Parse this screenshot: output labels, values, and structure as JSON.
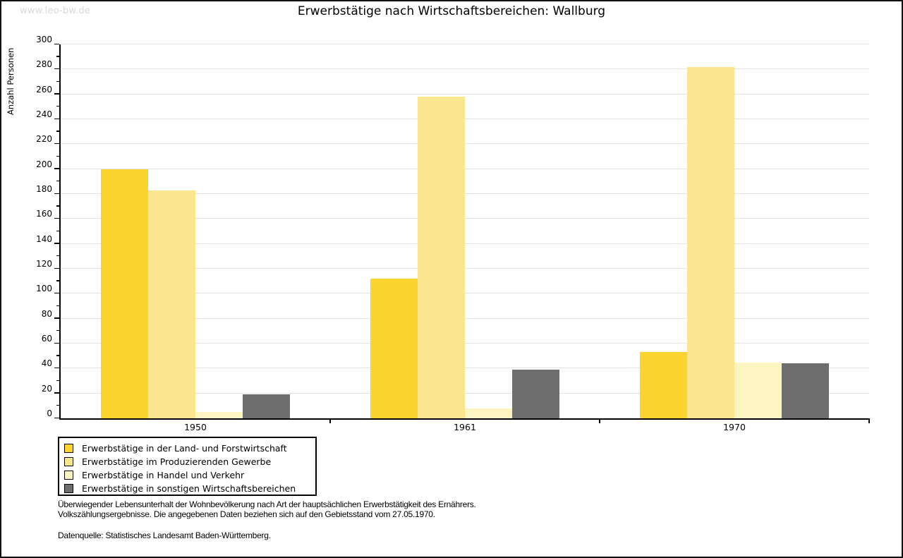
{
  "watermark": "www.leo-bw.de",
  "notes": [
    "Überwiegender Lebensunterhalt der Wohnbevölkerung nach Art der hauptsächlichen Erwerbstätigkeit des Ernährers.",
    "Volkszählungsergebnisse. Die angegebenen Daten beziehen sich auf den Gebietsstand vom 27.05.1970."
  ],
  "source": "Datenquelle: Statistisches Landesamt Baden-Württemberg.",
  "colors": {
    "grid": "#e3e3e3",
    "axis": "#000000",
    "watermark": "#d9d9d9"
  },
  "chart_data": {
    "type": "bar",
    "title": "Erwerbstätige nach Wirtschaftsbereichen: Wallburg",
    "ylabel": "Anzahl Personen",
    "xlabel": "",
    "categories": [
      "1950",
      "1961",
      "1970"
    ],
    "series": [
      {
        "name": "Erwerbstätige in der Land- und Forstwirtschaft",
        "key": "land-und-forstwirtschaft",
        "color": "#FCD430",
        "values": [
          200,
          112,
          53
        ]
      },
      {
        "name": "Erwerbstätige im Produzierenden Gewerbe",
        "key": "produzierendes-gewerbe",
        "color": "#FAE78D",
        "values": [
          183,
          258,
          282
        ]
      },
      {
        "name": "Erwerbstätige in Handel und Verkehr",
        "key": "handel-und-verkehr",
        "color": "#FCF5C2",
        "values": [
          5,
          8,
          45
        ]
      },
      {
        "name": "Erwerbstätige in sonstigen Wirtschaftsbereichen",
        "key": "sonstige-wirtschaftsbereiche",
        "color": "#6E6E6E",
        "values": [
          19,
          39,
          44
        ]
      }
    ],
    "ylim": [
      0,
      300
    ],
    "ytick_major_step": 20,
    "ytick_minor_step": 10,
    "grid": true,
    "legend_position": "bottom-left"
  }
}
